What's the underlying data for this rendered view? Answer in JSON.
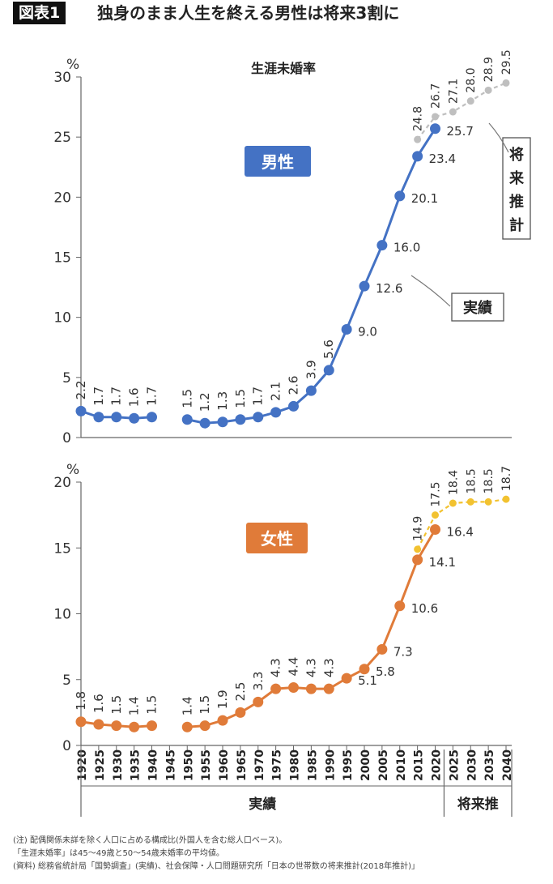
{
  "header": {
    "badge": "図表1",
    "title": "独身のまま人生を終える男性は将来3割に"
  },
  "chart_data": [
    {
      "type": "line",
      "title": "生涯未婚率",
      "series_label": "男性",
      "unit": "%",
      "ylim": [
        0,
        30
      ],
      "yticks": [
        0,
        5,
        10,
        15,
        20,
        25,
        30
      ],
      "color_actual": "#4472c4",
      "color_projection": "#bfbfbf",
      "actual_segments": [
        {
          "x": [
            "1920",
            "1925",
            "1930",
            "1935",
            "1940"
          ],
          "values": [
            2.2,
            1.7,
            1.7,
            1.6,
            1.7
          ]
        },
        {
          "x": [
            "1950",
            "1955",
            "1960",
            "1965",
            "1970",
            "1975",
            "1980",
            "1985",
            "1990",
            "1995",
            "2000",
            "2005",
            "2010",
            "2015",
            "2020"
          ],
          "values": [
            1.5,
            1.2,
            1.3,
            1.5,
            1.7,
            2.1,
            2.6,
            3.9,
            5.6,
            9.0,
            12.6,
            16.0,
            20.1,
            23.4,
            25.7
          ]
        }
      ],
      "projection": {
        "x": [
          "2015",
          "2020",
          "2025",
          "2030",
          "2035",
          "2040"
        ],
        "values": [
          24.8,
          26.7,
          27.1,
          28.0,
          28.9,
          29.5
        ]
      },
      "annotations": {
        "actual": "実績",
        "projection": "将来推計"
      }
    },
    {
      "type": "line",
      "series_label": "女性",
      "unit": "%",
      "ylim": [
        0,
        20
      ],
      "yticks": [
        0,
        5,
        10,
        15,
        20
      ],
      "color_actual": "#e07b39",
      "color_projection": "#f2c230",
      "actual_segments": [
        {
          "x": [
            "1920",
            "1925",
            "1930",
            "1935",
            "1940"
          ],
          "values": [
            1.8,
            1.6,
            1.5,
            1.4,
            1.5
          ]
        },
        {
          "x": [
            "1950",
            "1955",
            "1960",
            "1965",
            "1970",
            "1975",
            "1980",
            "1985",
            "1990",
            "1995",
            "2000",
            "2005",
            "2010",
            "2015",
            "2020"
          ],
          "values": [
            1.4,
            1.5,
            1.9,
            2.5,
            3.3,
            4.3,
            4.4,
            4.3,
            4.3,
            5.1,
            5.8,
            7.3,
            10.6,
            14.1,
            16.4
          ]
        }
      ],
      "projection": {
        "x": [
          "2015",
          "2020",
          "2025",
          "2030",
          "2035",
          "2040"
        ],
        "values": [
          14.9,
          17.5,
          18.4,
          18.5,
          18.5,
          18.7
        ]
      }
    }
  ],
  "x_categories": [
    "1920",
    "1925",
    "1930",
    "1935",
    "1940",
    "1945",
    "1950",
    "1955",
    "1960",
    "1965",
    "1970",
    "1975",
    "1980",
    "1985",
    "1990",
    "1995",
    "2000",
    "2005",
    "2010",
    "2015",
    "2020",
    "2025",
    "2030",
    "2035",
    "2040"
  ],
  "x_groups": {
    "actual": "実績",
    "projection": "将来推"
  },
  "notes": [
    "(注) 配偶関係未詳を除く人口に占める構成比(外国人を含む総人口ベース)。",
    "「生涯未婚率」は45〜49歳と50〜54歳未婚率の平均値。",
    "(資料) 総務省統計局「国勢調査」(実績)、社会保障・人口問題研究所「日本の世帯数の将来推計(2018年推計)」"
  ]
}
